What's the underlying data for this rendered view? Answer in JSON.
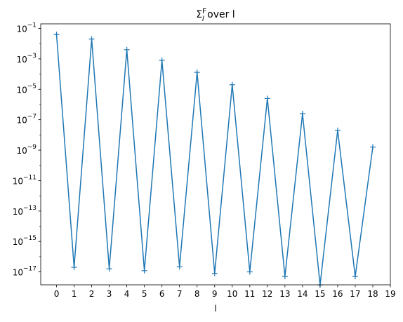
{
  "chart_data": {
    "type": "line",
    "title": {
      "sigma": "Σ",
      "sup": "F",
      "sub": "l",
      "rest": " over l"
    },
    "xlabel": "l",
    "ylabel": "",
    "yscale": "log",
    "xlim": [
      -0.9,
      19.0
    ],
    "ylim_log10": [
      -17.85,
      -0.7
    ],
    "x_ticks": [
      0,
      1,
      2,
      3,
      4,
      5,
      6,
      7,
      8,
      9,
      10,
      11,
      12,
      13,
      14,
      15,
      16,
      17,
      18,
      19
    ],
    "y_ticks": [
      {
        "exp": -1,
        "base": "10",
        "sup": "−1"
      },
      {
        "exp": -3,
        "base": "10",
        "sup": "−3"
      },
      {
        "exp": -5,
        "base": "10",
        "sup": "−5"
      },
      {
        "exp": -7,
        "base": "10",
        "sup": "−7"
      },
      {
        "exp": -9,
        "base": "10",
        "sup": "−9"
      },
      {
        "exp": -11,
        "base": "10",
        "sup": "−11"
      },
      {
        "exp": -13,
        "base": "10",
        "sup": "−13"
      },
      {
        "exp": -15,
        "base": "10",
        "sup": "−15"
      },
      {
        "exp": -17,
        "base": "10",
        "sup": "−17"
      }
    ],
    "series": [
      {
        "color": "#1f77b4",
        "marker": "+",
        "x": [
          0,
          1,
          2,
          3,
          4,
          5,
          6,
          7,
          8,
          9,
          10,
          11,
          12,
          13,
          14,
          15,
          16,
          17,
          18
        ],
        "y": [
          0.04,
          2e-17,
          0.02,
          1.6e-17,
          0.004,
          1.2e-17,
          0.0008,
          2.2e-17,
          0.00013,
          8e-18,
          2e-05,
          1e-17,
          2.5e-06,
          5e-18,
          2.5e-07,
          1.4e-18,
          2e-08,
          5e-18,
          1.6e-09
        ]
      }
    ],
    "grid": false,
    "legend": "none"
  }
}
